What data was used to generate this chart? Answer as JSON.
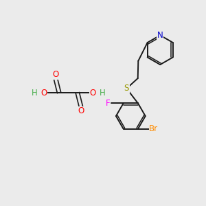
{
  "background_color": "#ebebeb",
  "atoms": {
    "N": {
      "color": "#0000CC"
    },
    "O": {
      "color": "#FF0000"
    },
    "S": {
      "color": "#999900"
    },
    "F": {
      "color": "#FF00FF"
    },
    "Br": {
      "color": "#FF8C00"
    },
    "C": {
      "color": "#1a1a1a"
    },
    "H": {
      "color": "#4CAF50"
    }
  },
  "bond_color": "#1a1a1a",
  "bond_width": 1.4,
  "font_size": 7.5
}
